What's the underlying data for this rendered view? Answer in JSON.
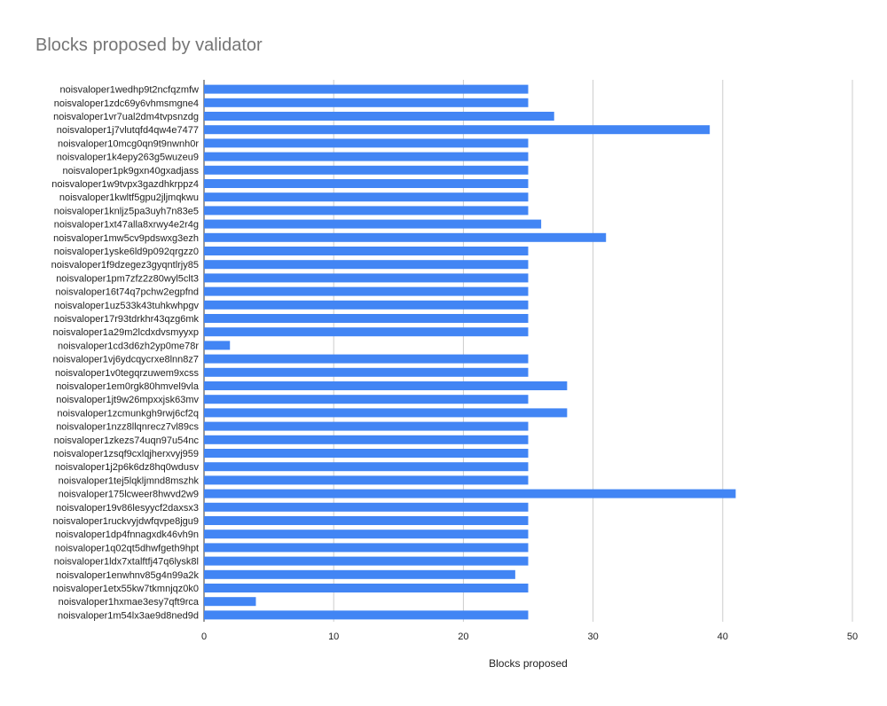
{
  "chart_data": {
    "type": "bar",
    "orientation": "horizontal",
    "title": "Blocks proposed by validator",
    "xlabel": "Blocks proposed",
    "ylabel": "",
    "xlim": [
      0,
      50
    ],
    "x_ticks": [
      "0",
      "10",
      "20",
      "30",
      "40",
      "50"
    ],
    "grid": true,
    "bar_color": "#4285f4",
    "categories": [
      "noisvaloper1wedhp9t2ncfqzmfw",
      "noisvaloper1zdc69y6vhmsmgne4",
      "noisvaloper1vr7ual2dm4tvpsnzdg",
      "noisvaloper1j7vlutqfd4qw4e7477",
      "noisvaloper10mcg0qn9t9nwnh0r",
      "noisvaloper1k4epy263g5wuzeu9",
      "noisvaloper1pk9gxn40gxadjass",
      "noisvaloper1w9tvpx3gazdhkrppz4",
      "noisvaloper1kwltf5gpu2jljmqkwu",
      "noisvaloper1knljz5pa3uyh7n83e5",
      "noisvaloper1xt47alla8xrwy4e2r4g",
      "noisvaloper1mw5cv9pdswxg3ezh",
      "noisvaloper1yske6ld9p092qrgzz0",
      "noisvaloper1f9dzegez3gyqntlrjy85",
      "noisvaloper1pm7zfz2z80wyl5clt3",
      "noisvaloper16t74q7pchw2egpfnd",
      "noisvaloper1uz533k43tuhkwhpgv",
      "noisvaloper17r93tdrkhr43qzg6mk",
      "noisvaloper1a29m2lcdxdvsmyyxp",
      "noisvaloper1cd3d6zh2yp0me78r",
      "noisvaloper1vj6ydcqycrxe8lnn8z7",
      "noisvaloper1v0tegqrzuwem9xcss",
      "noisvaloper1em0rgk80hmvel9vla",
      "noisvaloper1jt9w26mpxxjsk63mv",
      "noisvaloper1zcmunkgh9rwj6cf2q",
      "noisvaloper1nzz8llqnrecz7vl89cs",
      "noisvaloper1zkezs74uqn97u54nc",
      "noisvaloper1zsqf9cxlqjherxvyj959",
      "noisvaloper1j2p6k6dz8hq0wdusv",
      "noisvaloper1tej5lqkljmnd8mszhk",
      "noisvaloper175lcweer8hwvd2w9",
      "noisvaloper19v86lesyycf2daxsx3",
      "noisvaloper1ruckvyjdwfqvpe8jgu9",
      "noisvaloper1dp4fnnagxdk46vh9n",
      "noisvaloper1q02qt5dhwfgeth9hpt",
      "noisvaloper1ldx7xtalftfj47q6lysk8l",
      "noisvaloper1enwhnv85g4n99a2k",
      "noisvaloper1etx55kw7tkmnjqz0k0",
      "noisvaloper1hxmae3esy7qft9rca",
      "noisvaloper1m54lx3ae9d8ned9d"
    ],
    "values": [
      25,
      25,
      27,
      39,
      25,
      25,
      25,
      25,
      25,
      25,
      26,
      31,
      25,
      25,
      25,
      25,
      25,
      25,
      25,
      2,
      25,
      25,
      28,
      25,
      28,
      25,
      25,
      25,
      25,
      25,
      41,
      25,
      25,
      25,
      25,
      25,
      24,
      25,
      4,
      25
    ]
  }
}
